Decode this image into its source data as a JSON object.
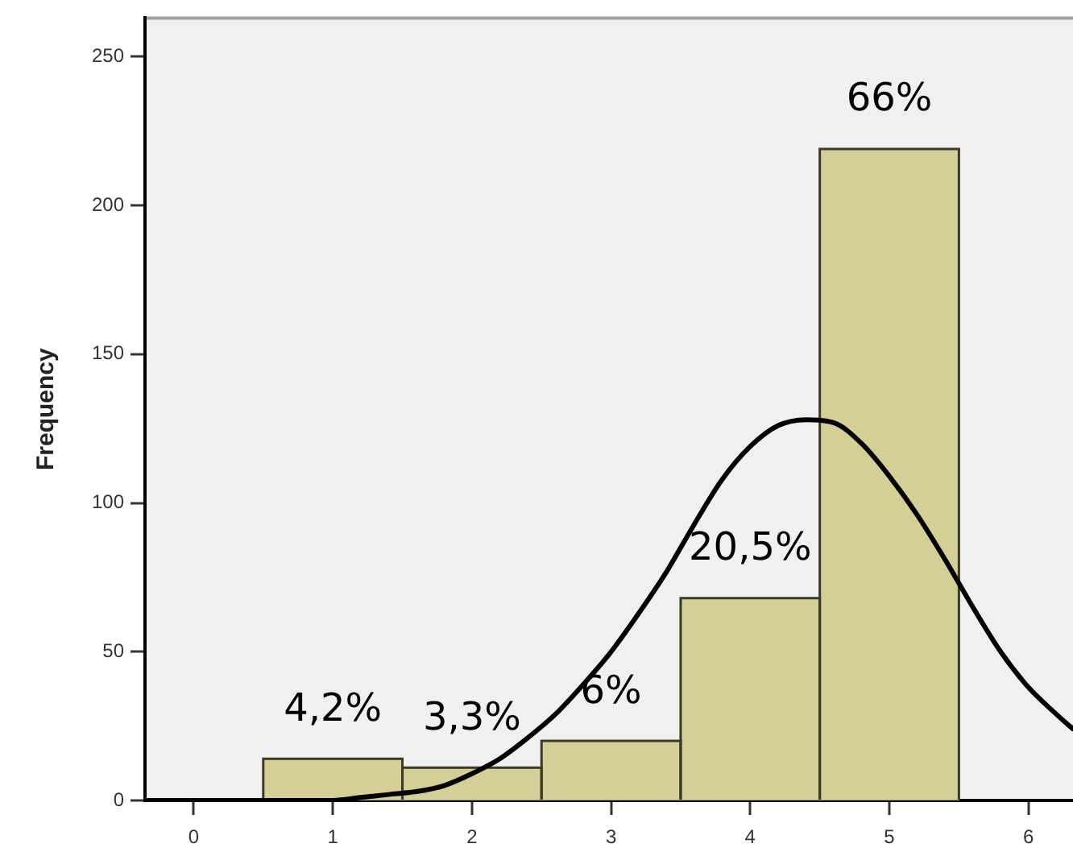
{
  "chart_data": {
    "type": "histogram",
    "ylabel": "Frequency",
    "bins": [
      0.5,
      1.5,
      2.5,
      3.5,
      4.5,
      5.5
    ],
    "series": [
      {
        "values": [
          14,
          11,
          20,
          68,
          219
        ],
        "color": "#d3cf97"
      },
      {
        "type": "line",
        "x": [
          -0.35,
          0,
          0.5,
          0.8,
          1,
          1.2,
          1.4,
          1.6,
          1.8,
          2,
          2.2,
          2.4,
          2.6,
          2.8,
          3,
          3.2,
          3.4,
          3.6,
          3.8,
          4,
          4.2,
          4.4,
          4.6,
          4.8,
          5,
          5.2,
          5.4,
          5.6,
          5.8,
          6,
          6.2,
          6.32
        ],
        "values": [
          0,
          0,
          0,
          0,
          0,
          1,
          2,
          3,
          5,
          9,
          14,
          21,
          29,
          39,
          50,
          63,
          77,
          93,
          108,
          119,
          126,
          128,
          127,
          120,
          109,
          96,
          81,
          65,
          50,
          38,
          29,
          24
        ],
        "color": "#000000"
      }
    ],
    "annotations": [
      {
        "text": "4,2%",
        "x": 1,
        "y": 14
      },
      {
        "text": "3,3%",
        "x": 2,
        "y": 11
      },
      {
        "text": "6%",
        "x": 3,
        "y": 20
      },
      {
        "text": "20,5%",
        "x": 4,
        "y": 68
      },
      {
        "text": "66%",
        "x": 5,
        "y": 219
      }
    ],
    "xlim": [
      -0.35,
      6.32
    ],
    "xticks": [
      0,
      1,
      2,
      3,
      4,
      5,
      6
    ],
    "ylim": [
      0,
      263
    ],
    "yticks": [
      0,
      50,
      100,
      150,
      200,
      250
    ]
  }
}
